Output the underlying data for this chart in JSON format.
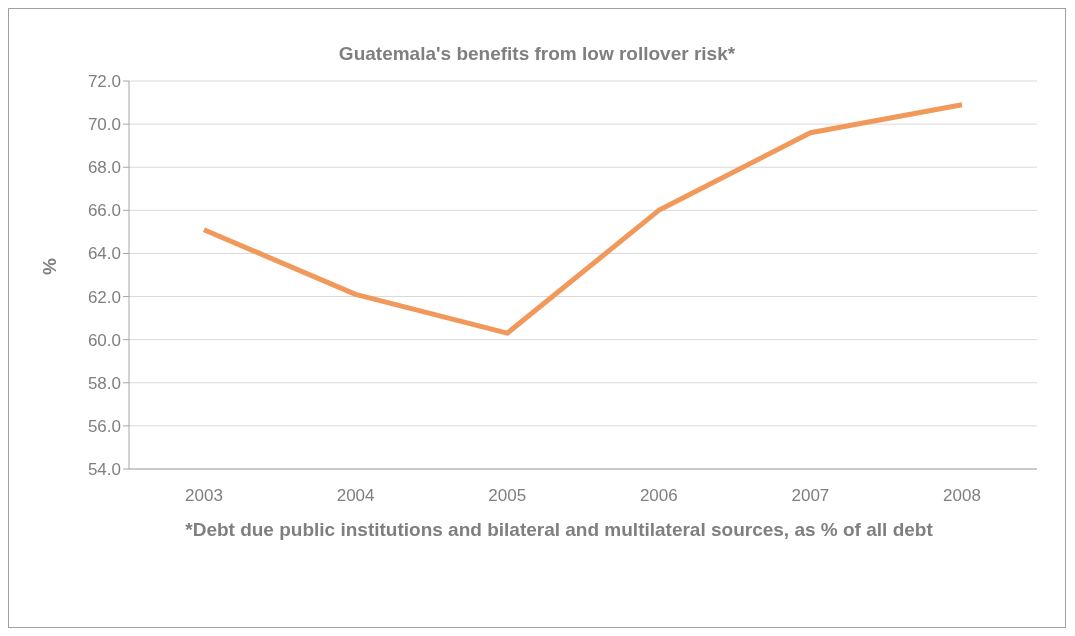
{
  "chart_data": {
    "type": "line",
    "title": "Guatemala's benefits from low rollover risk*",
    "ylabel": "%",
    "categories": [
      "2003",
      "2004",
      "2005",
      "2006",
      "2007",
      "2008"
    ],
    "series": [
      {
        "color": "#f0995a",
        "values": [
          65.1,
          62.1,
          60.3,
          66.0,
          69.6,
          70.9
        ]
      }
    ],
    "ylim": [
      54,
      72
    ],
    "yticks": [
      {
        "value": 54,
        "label": "54.0"
      },
      {
        "value": 56,
        "label": "56.0"
      },
      {
        "value": 58,
        "label": "58.0"
      },
      {
        "value": 60,
        "label": "60.0"
      },
      {
        "value": 62,
        "label": "62.0"
      },
      {
        "value": 64,
        "label": "64.0"
      },
      {
        "value": 66,
        "label": "66.0"
      },
      {
        "value": 68,
        "label": "68.0"
      },
      {
        "value": 70,
        "label": "70.0"
      },
      {
        "value": 72,
        "label": "72.0"
      }
    ],
    "grid": "y",
    "marker": "none",
    "line_style": "solid",
    "legend": false,
    "annotations": [
      "*Debt due public institutions and bilateral and multilateral sources, as % of all debt"
    ]
  }
}
